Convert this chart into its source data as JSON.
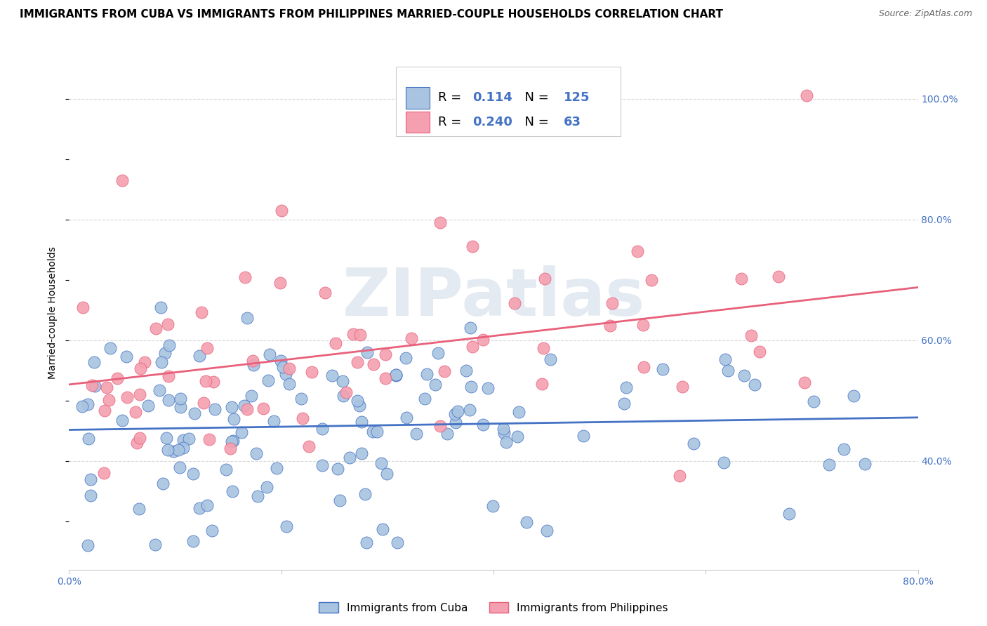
{
  "title": "IMMIGRANTS FROM CUBA VS IMMIGRANTS FROM PHILIPPINES MARRIED-COUPLE HOUSEHOLDS CORRELATION CHART",
  "source": "Source: ZipAtlas.com",
  "ylabel": "Married-couple Households",
  "watermark": "ZIPatlas",
  "xmin": 0.0,
  "xmax": 0.8,
  "ymin": 0.22,
  "ymax": 1.07,
  "yticks": [
    0.4,
    0.6,
    0.8,
    1.0
  ],
  "ytick_labels": [
    "40.0%",
    "60.0%",
    "80.0%",
    "100.0%"
  ],
  "legend_R_cuba": "0.114",
  "legend_N_cuba": "125",
  "legend_R_phil": "0.240",
  "legend_N_phil": "63",
  "color_cuba": "#a8c4e0",
  "color_phil": "#f4a0b0",
  "line_color_cuba": "#4472c4",
  "line_color_phil": "#e8607a",
  "background_color": "#ffffff",
  "grid_color": "#d8d8d8",
  "legend_label_cuba": "Immigrants from Cuba",
  "legend_label_phil": "Immigrants from Philippines",
  "title_fontsize": 11,
  "axis_label_fontsize": 10,
  "tick_fontsize": 10,
  "legend_fontsize": 13
}
